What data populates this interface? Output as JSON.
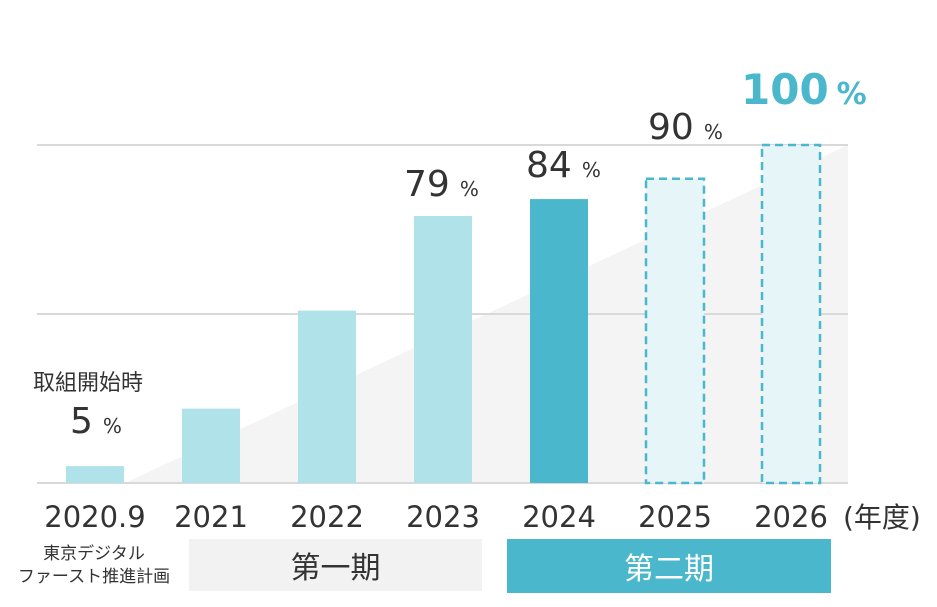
{
  "colors": {
    "bar": "#b0e2ea",
    "bar_current": "#4bb7cc",
    "bar_planned_fill": "#e6f5f8",
    "bar_planned_stroke": "#4bb7cc",
    "highlight_text": "#4bb7cc",
    "text": "#333333",
    "grid": "#d9d9d9",
    "trend_area": "#f4f4f4"
  },
  "chart_data": {
    "type": "bar",
    "categories": [
      "2020.9",
      "2021",
      "2022",
      "2023",
      "2024",
      "2025",
      "2026"
    ],
    "values": [
      5,
      22,
      51,
      79,
      84,
      90,
      100
    ],
    "value_labels": [
      {
        "index": 0,
        "value": "5",
        "unit": "%"
      },
      {
        "index": 3,
        "value": "79",
        "unit": "%"
      },
      {
        "index": 4,
        "value": "84",
        "unit": "%"
      },
      {
        "index": 5,
        "value": "90",
        "unit": "%"
      },
      {
        "index": 6,
        "value": "100",
        "unit": "%"
      }
    ],
    "bar_styles": [
      "actual",
      "actual",
      "actual",
      "actual",
      "current",
      "planned",
      "planned"
    ],
    "annotation": "取組開始時",
    "x_unit_label": "(年度)",
    "ylim": [
      0,
      100
    ],
    "gridlines": [
      0,
      50,
      100
    ],
    "grid": true,
    "trend_background": true
  },
  "phases": {
    "plan_label_line1": "東京デジタル",
    "plan_label_line2": "ファースト推進計画",
    "phase1": "第一期",
    "phase2": "第二期"
  }
}
